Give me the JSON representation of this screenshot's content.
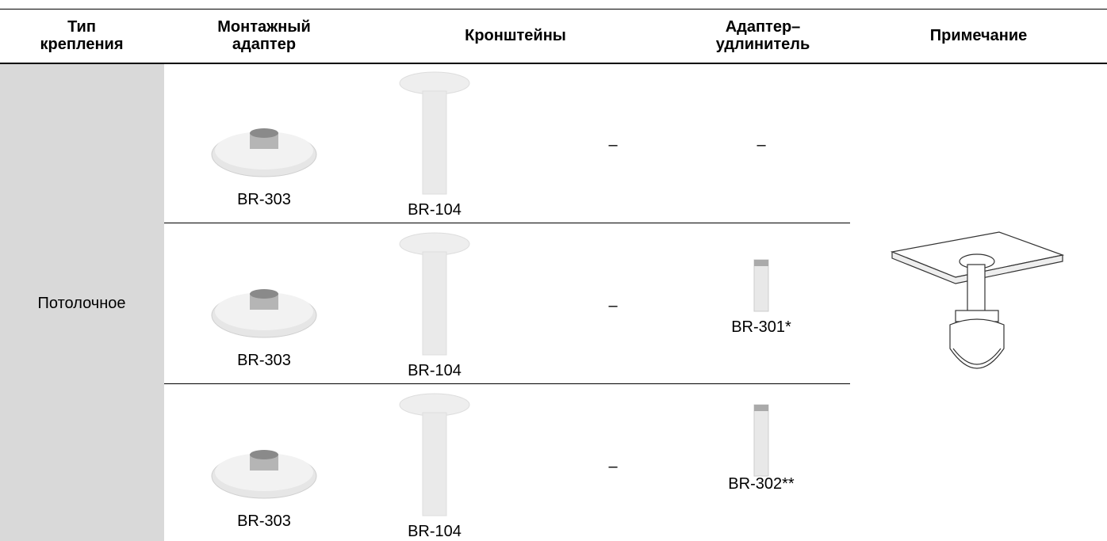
{
  "table": {
    "header": [
      "Тип\nкрепления",
      "Монтажный\nадаптер",
      "Кронштейны",
      "Адаптер–\nудлинитель",
      "Примечание"
    ],
    "mount_type": "Потолочное",
    "rows": [
      {
        "adapter": "BR-303",
        "bracket": "BR-104",
        "bracket_note": "–",
        "extension": "–"
      },
      {
        "adapter": "BR-303",
        "bracket": "BR-104",
        "bracket_note": "–",
        "extension": "BR-301*"
      },
      {
        "adapter": "BR-303",
        "bracket": "BR-104",
        "bracket_note": "–",
        "extension": "BR-302**"
      }
    ]
  }
}
